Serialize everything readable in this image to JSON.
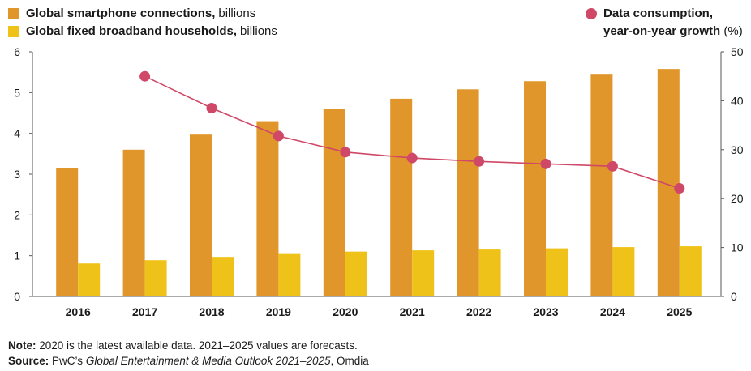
{
  "legend": {
    "smartphone": {
      "bold": "Global smartphone connections,",
      "rest": "billions"
    },
    "broadband": {
      "bold": "Global fixed broadband households,",
      "rest": "billions"
    },
    "data_line1": "Data consumption,",
    "data_line2_bold": "year-on-year growth",
    "data_line2_rest": "(%)"
  },
  "notes": {
    "note_label": "Note:",
    "note_text": "2020 is the latest available data. 2021–2025 values are forecasts.",
    "source_label": "Source:",
    "source_pre": "PwC’s",
    "source_title": "Global Entertainment & Media Outlook 2021–2025",
    "source_post": ", Omdia"
  },
  "chart_data": {
    "type": "bar",
    "categories": [
      "2016",
      "2017",
      "2018",
      "2019",
      "2020",
      "2021",
      "2022",
      "2023",
      "2024",
      "2025"
    ],
    "series": [
      {
        "name": "Global smartphone connections, billions",
        "kind": "bar",
        "axis": "left",
        "color": "#e0962a",
        "values": [
          3.15,
          3.6,
          3.97,
          4.3,
          4.6,
          4.85,
          5.08,
          5.28,
          5.46,
          5.58
        ]
      },
      {
        "name": "Global fixed broadband households, billions",
        "kind": "bar",
        "axis": "left",
        "color": "#eec218",
        "values": [
          0.81,
          0.89,
          0.97,
          1.06,
          1.1,
          1.13,
          1.15,
          1.18,
          1.21,
          1.23
        ]
      },
      {
        "name": "Data consumption, year-on-year growth (%)",
        "kind": "line",
        "axis": "right",
        "color": "#d04867",
        "values": [
          null,
          45,
          38.5,
          32.8,
          29.5,
          28.3,
          27.6,
          27.1,
          26.6,
          22.1
        ]
      }
    ],
    "yleft": {
      "ylim": [
        0,
        6
      ],
      "ticks": [
        0,
        1,
        2,
        3,
        4,
        5,
        6
      ]
    },
    "yright": {
      "ylim": [
        0,
        50
      ],
      "ticks": [
        0,
        10,
        20,
        30,
        40,
        50
      ]
    },
    "grid": false,
    "legend_position": "top"
  }
}
